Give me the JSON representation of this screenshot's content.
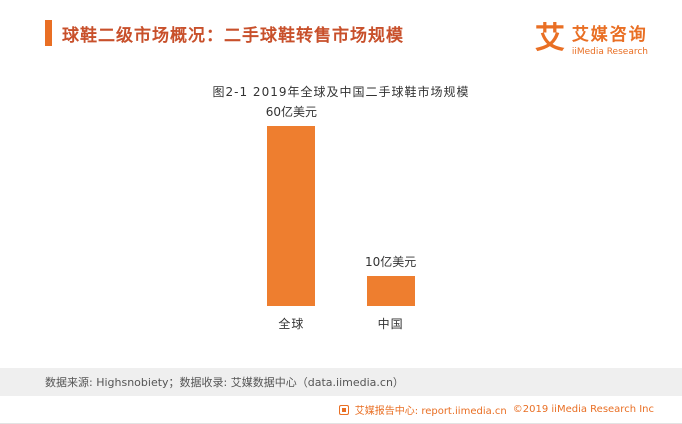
{
  "colors": {
    "accent": "#e96f24",
    "bar": "#ee7e2f",
    "title": "#c8502b",
    "band_bg": "#efefef"
  },
  "header": {
    "title": "球鞋二级市场概况：二手球鞋转售市场规模",
    "logo": {
      "glyph": "艾",
      "brand_cn": "艾媒咨询",
      "brand_en": "iiMedia Research"
    }
  },
  "chart_data": {
    "type": "bar",
    "title": "图2-1 2019年全球及中国二手球鞋市场规模",
    "categories": [
      "全球",
      "中国"
    ],
    "values": [
      60,
      10
    ],
    "unit": "亿美元",
    "value_labels": [
      "60亿美元",
      "10亿美元"
    ],
    "xlabel": "",
    "ylabel": "",
    "ylim": [
      0,
      60
    ],
    "grid": false,
    "legend": "none",
    "bar_color": "#ee7e2f"
  },
  "footer": {
    "source_note": "数据来源: Highsnobiety；数据收录: 艾媒数据中心（data.iimedia.cn）",
    "report_center": "艾媒报告中心: report.iimedia.cn",
    "copyright": "©2019  iiMedia Research Inc",
    "report_icon": "report-doc-icon"
  }
}
